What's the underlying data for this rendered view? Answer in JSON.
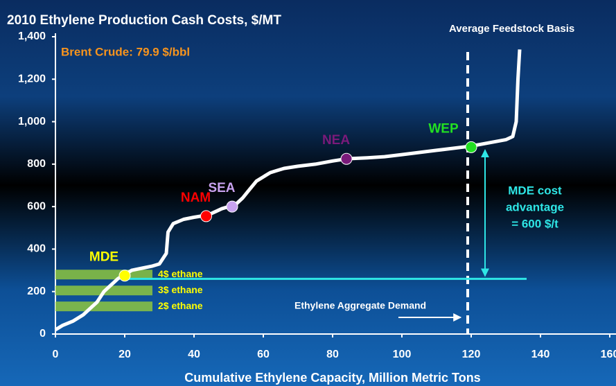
{
  "chart_data": {
    "type": "line",
    "title": "2010 Ethylene Production Cash Costs, $/MT",
    "subtitle": "Average Feedstock Basis",
    "x_label": "Cumulative Ethylene Capacity, Million Metric Tons",
    "note": "Brent Crude: 79.9 $/bbl",
    "xlim": [
      0,
      160
    ],
    "xticks": [
      0,
      20,
      40,
      60,
      80,
      100,
      120,
      140,
      160
    ],
    "ylim": [
      0,
      1400
    ],
    "yticks": [
      0,
      200,
      400,
      600,
      800,
      {
        "value": 1000,
        "label": "1,000"
      },
      {
        "value": 1200,
        "label": "1,200"
      },
      {
        "value": 1400,
        "label": "1,400"
      }
    ],
    "series": [
      {
        "color": "#ffffff",
        "x": [
          0,
          2,
          5,
          8,
          10,
          12,
          14,
          16,
          18,
          20,
          22,
          25,
          28,
          30,
          32,
          32.5,
          34,
          37,
          40,
          42,
          44,
          46,
          48,
          50,
          52,
          54,
          56,
          58,
          60,
          62,
          64,
          66,
          70,
          75,
          80,
          84,
          90,
          95,
          100,
          105,
          110,
          115,
          120,
          125,
          130,
          132,
          133,
          133.5,
          134
        ],
        "values": [
          20,
          40,
          60,
          90,
          120,
          150,
          200,
          230,
          260,
          280,
          300,
          310,
          320,
          330,
          380,
          480,
          520,
          540,
          550,
          555,
          560,
          575,
          590,
          600,
          610,
          640,
          680,
          720,
          740,
          760,
          770,
          780,
          790,
          800,
          815,
          825,
          830,
          835,
          845,
          855,
          865,
          875,
          885,
          900,
          915,
          930,
          1000,
          1200,
          1340
        ]
      }
    ],
    "points": [
      {
        "label": "MDE",
        "x": 20,
        "y": 275,
        "color": "#ffff00"
      },
      {
        "label": "NAM",
        "x": 43.5,
        "y": 555,
        "color": "#ff0000"
      },
      {
        "label": "SEA",
        "x": 51,
        "y": 600,
        "color": "#c8a2f0"
      },
      {
        "label": "NEA",
        "x": 84,
        "y": 825,
        "color": "#7a1a7a"
      },
      {
        "label": "WEP",
        "x": 120,
        "y": 880,
        "color": "#22e022"
      }
    ],
    "ethane_bars": [
      {
        "label": "4$ ethane",
        "value": 280
      },
      {
        "label": "3$ ethane",
        "value": 205
      },
      {
        "label": "2$ ethane",
        "value": 130
      }
    ],
    "bar_extent": [
      0,
      28
    ],
    "mde_line": {
      "y": 260,
      "x": [
        20,
        136
      ]
    },
    "demand": {
      "label": "Ethylene Aggregate Demand",
      "x": 119
    },
    "advantage": {
      "lines": [
        "MDE cost",
        "advantage",
        "= 600 $/t"
      ],
      "x": 124,
      "y": [
        260,
        880
      ]
    }
  }
}
